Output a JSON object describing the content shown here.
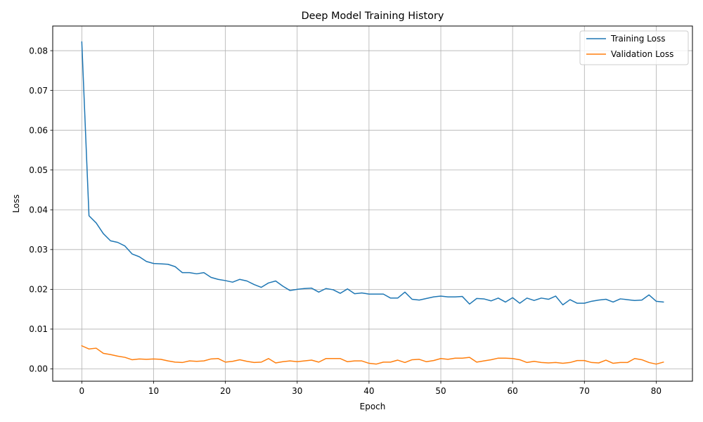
{
  "chart_data": {
    "type": "line",
    "title": "Deep Model Training History",
    "xlabel": "Epoch",
    "ylabel": "Loss",
    "xlim": [
      -4.05,
      85.05
    ],
    "ylim": [
      -0.0031,
      0.0862
    ],
    "grid": true,
    "legend_position": "top-right",
    "x_ticks": [
      0,
      10,
      20,
      30,
      40,
      50,
      60,
      70,
      80
    ],
    "x_tick_labels": [
      "0",
      "10",
      "20",
      "30",
      "40",
      "50",
      "60",
      "70",
      "80"
    ],
    "y_ticks": [
      0.0,
      0.01,
      0.02,
      0.03,
      0.04,
      0.05,
      0.06,
      0.07,
      0.08
    ],
    "y_tick_labels": [
      "0.00",
      "0.01",
      "0.02",
      "0.03",
      "0.04",
      "0.05",
      "0.06",
      "0.07",
      "0.08"
    ],
    "x": [
      0,
      1,
      2,
      3,
      4,
      5,
      6,
      7,
      8,
      9,
      10,
      11,
      12,
      13,
      14,
      15,
      16,
      17,
      18,
      19,
      20,
      21,
      22,
      23,
      24,
      25,
      26,
      27,
      28,
      29,
      30,
      31,
      32,
      33,
      34,
      35,
      36,
      37,
      38,
      39,
      40,
      41,
      42,
      43,
      44,
      45,
      46,
      47,
      48,
      49,
      50,
      51,
      52,
      53,
      54,
      55,
      56,
      57,
      58,
      59,
      60,
      61,
      62,
      63,
      64,
      65,
      66,
      67,
      68,
      69,
      70,
      71,
      72,
      73,
      74,
      75,
      76,
      77,
      78,
      79,
      80,
      81
    ],
    "series": [
      {
        "name": "Training Loss",
        "color": "#1f77b4",
        "values": [
          0.0822,
          0.0385,
          0.0367,
          0.034,
          0.0322,
          0.0318,
          0.0309,
          0.0289,
          0.0282,
          0.027,
          0.0265,
          0.0264,
          0.0263,
          0.0257,
          0.0242,
          0.0242,
          0.0239,
          0.0242,
          0.023,
          0.0225,
          0.0222,
          0.0218,
          0.0225,
          0.0221,
          0.0212,
          0.0205,
          0.0216,
          0.0221,
          0.0208,
          0.0197,
          0.02,
          0.0202,
          0.0203,
          0.0193,
          0.0202,
          0.0199,
          0.019,
          0.0201,
          0.0189,
          0.0191,
          0.0188,
          0.0188,
          0.0188,
          0.0178,
          0.0178,
          0.0193,
          0.0175,
          0.0173,
          0.0177,
          0.0181,
          0.0183,
          0.0181,
          0.0181,
          0.0182,
          0.0163,
          0.0177,
          0.0176,
          0.0171,
          0.0178,
          0.0168,
          0.0179,
          0.0165,
          0.0178,
          0.0172,
          0.0178,
          0.0175,
          0.0183,
          0.0161,
          0.0174,
          0.0165,
          0.0165,
          0.017,
          0.0173,
          0.0175,
          0.0168,
          0.0176,
          0.0174,
          0.0172,
          0.0173,
          0.0186,
          0.017,
          0.0168
        ]
      },
      {
        "name": "Validation Loss",
        "color": "#ff7f0e",
        "values": [
          0.0058,
          0.005,
          0.0052,
          0.0039,
          0.0036,
          0.0032,
          0.0029,
          0.0023,
          0.0025,
          0.0024,
          0.0025,
          0.0024,
          0.002,
          0.0017,
          0.0016,
          0.002,
          0.0019,
          0.002,
          0.0025,
          0.0026,
          0.0017,
          0.0019,
          0.0023,
          0.0019,
          0.0016,
          0.0017,
          0.0026,
          0.0015,
          0.0018,
          0.002,
          0.0018,
          0.002,
          0.0022,
          0.0017,
          0.0026,
          0.0026,
          0.0026,
          0.0018,
          0.002,
          0.002,
          0.0014,
          0.0012,
          0.0017,
          0.0017,
          0.0022,
          0.0016,
          0.0023,
          0.0024,
          0.0018,
          0.0021,
          0.0026,
          0.0024,
          0.0027,
          0.0027,
          0.0029,
          0.0017,
          0.002,
          0.0023,
          0.0027,
          0.0027,
          0.0026,
          0.0023,
          0.0016,
          0.0019,
          0.0016,
          0.0015,
          0.0016,
          0.0014,
          0.0016,
          0.0021,
          0.0021,
          0.0016,
          0.0015,
          0.0022,
          0.0014,
          0.0016,
          0.0016,
          0.0026,
          0.0023,
          0.0016,
          0.0012,
          0.0017
        ]
      }
    ]
  }
}
